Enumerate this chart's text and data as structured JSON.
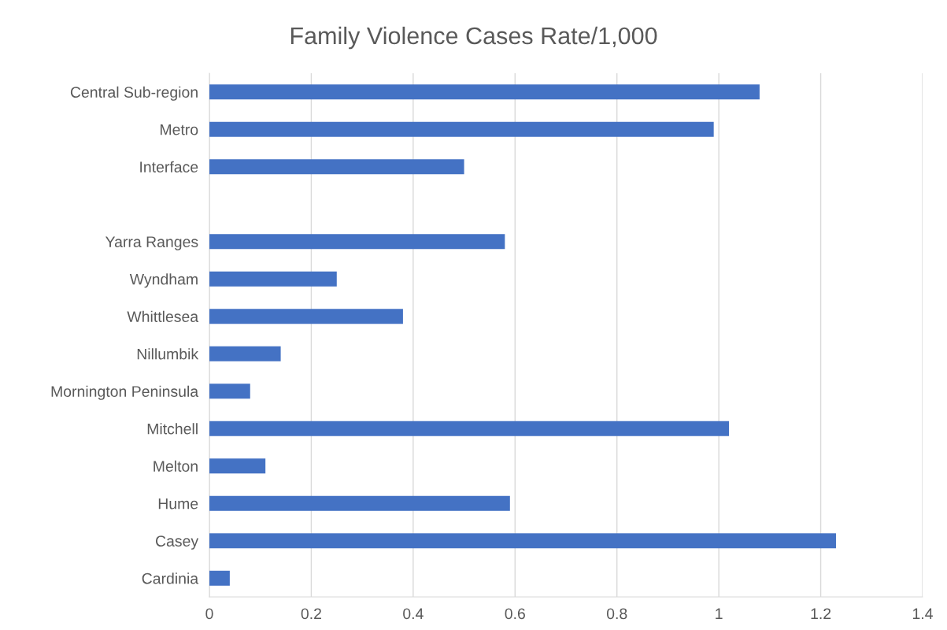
{
  "chart_data": {
    "type": "bar",
    "orientation": "horizontal",
    "title": "Family Violence Cases Rate/1,000",
    "categories": [
      "Central Sub-region",
      "Metro",
      "Interface",
      null,
      "Yarra Ranges",
      "Wyndham",
      "Whittlesea",
      "Nillumbik",
      "Mornington Peninsula",
      "Mitchell",
      "Melton",
      "Hume",
      "Casey",
      "Cardinia"
    ],
    "values": [
      1.08,
      0.99,
      0.5,
      null,
      0.58,
      0.25,
      0.38,
      0.14,
      0.08,
      1.02,
      0.11,
      0.59,
      1.23,
      0.04
    ],
    "color": "#4472c4",
    "xlim": [
      0,
      1.4
    ],
    "xticks": [
      0,
      0.2,
      0.4,
      0.6,
      0.8,
      1,
      1.2,
      1.4
    ],
    "grid": "x"
  }
}
